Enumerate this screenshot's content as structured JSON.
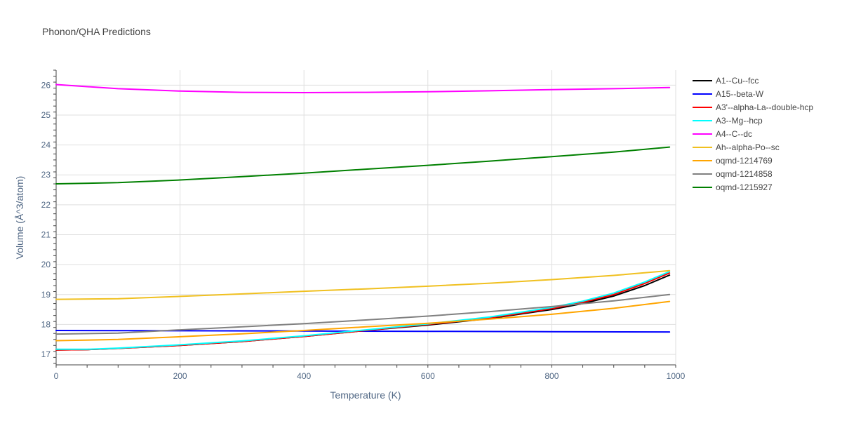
{
  "chart_data": {
    "type": "line",
    "title": "Phonon/QHA Predictions",
    "xlabel": "Temperature (K)",
    "ylabel": "Volume (Å^3/atom)",
    "xlim": [
      0,
      1000
    ],
    "ylim": [
      16.65,
      26.5
    ],
    "xticks": [
      0,
      200,
      400,
      600,
      800,
      1000
    ],
    "yticks": [
      17,
      18,
      19,
      20,
      21,
      22,
      23,
      24,
      25,
      26
    ],
    "grid": true,
    "legend_position": "right",
    "series": [
      {
        "name": "A1--Cu--fcc",
        "color": "#000000",
        "x": [
          0,
          50,
          100,
          200,
          300,
          400,
          500,
          600,
          700,
          800,
          850,
          900,
          950,
          990
        ],
        "y": [
          17.15,
          17.16,
          17.2,
          17.3,
          17.43,
          17.6,
          17.8,
          17.98,
          18.2,
          18.5,
          18.7,
          18.95,
          19.3,
          19.65
        ]
      },
      {
        "name": "A15--beta-W",
        "color": "#0000ff",
        "x": [
          0,
          200,
          400,
          600,
          800,
          990
        ],
        "y": [
          17.8,
          17.79,
          17.78,
          17.77,
          17.76,
          17.75
        ]
      },
      {
        "name": "A3'--alpha-La--double-hcp",
        "color": "#ff0000",
        "x": [
          0,
          50,
          100,
          200,
          300,
          400,
          500,
          600,
          700,
          800,
          850,
          900,
          950,
          990
        ],
        "y": [
          17.15,
          17.16,
          17.2,
          17.3,
          17.43,
          17.6,
          17.8,
          18.0,
          18.22,
          18.53,
          18.74,
          19.0,
          19.37,
          19.72
        ]
      },
      {
        "name": "A3--Mg--hcp",
        "color": "#00ffff",
        "x": [
          0,
          50,
          100,
          200,
          300,
          400,
          500,
          600,
          700,
          800,
          850,
          900,
          950,
          990
        ],
        "y": [
          17.17,
          17.17,
          17.21,
          17.32,
          17.45,
          17.62,
          17.82,
          18.02,
          18.25,
          18.57,
          18.78,
          19.05,
          19.42,
          19.77
        ]
      },
      {
        "name": "A4--C--dc",
        "color": "#ff00ff",
        "x": [
          0,
          100,
          200,
          300,
          400,
          500,
          600,
          700,
          800,
          900,
          990
        ],
        "y": [
          26.02,
          25.88,
          25.8,
          25.76,
          25.75,
          25.76,
          25.78,
          25.81,
          25.85,
          25.88,
          25.92
        ]
      },
      {
        "name": "Ah--alpha-Po--sc",
        "color": "#f0c020",
        "x": [
          0,
          100,
          200,
          300,
          400,
          500,
          600,
          700,
          800,
          900,
          990
        ],
        "y": [
          18.84,
          18.86,
          18.94,
          19.02,
          19.11,
          19.19,
          19.28,
          19.38,
          19.5,
          19.64,
          19.8
        ]
      },
      {
        "name": "oqmd-1214769",
        "color": "#ffa500",
        "x": [
          0,
          100,
          200,
          300,
          400,
          500,
          600,
          700,
          800,
          900,
          990
        ],
        "y": [
          17.46,
          17.5,
          17.59,
          17.69,
          17.8,
          17.92,
          18.04,
          18.18,
          18.34,
          18.54,
          18.77
        ]
      },
      {
        "name": "oqmd-1214858",
        "color": "#808080",
        "x": [
          0,
          100,
          200,
          300,
          400,
          500,
          600,
          700,
          800,
          900,
          990
        ],
        "y": [
          17.68,
          17.71,
          17.82,
          17.92,
          18.03,
          18.15,
          18.28,
          18.43,
          18.6,
          18.79,
          19.0
        ]
      },
      {
        "name": "oqmd-1215927",
        "color": "#008000",
        "x": [
          0,
          100,
          200,
          300,
          400,
          500,
          600,
          700,
          800,
          900,
          990
        ],
        "y": [
          22.7,
          22.74,
          22.83,
          22.94,
          23.06,
          23.19,
          23.32,
          23.46,
          23.61,
          23.76,
          23.93
        ]
      }
    ]
  }
}
